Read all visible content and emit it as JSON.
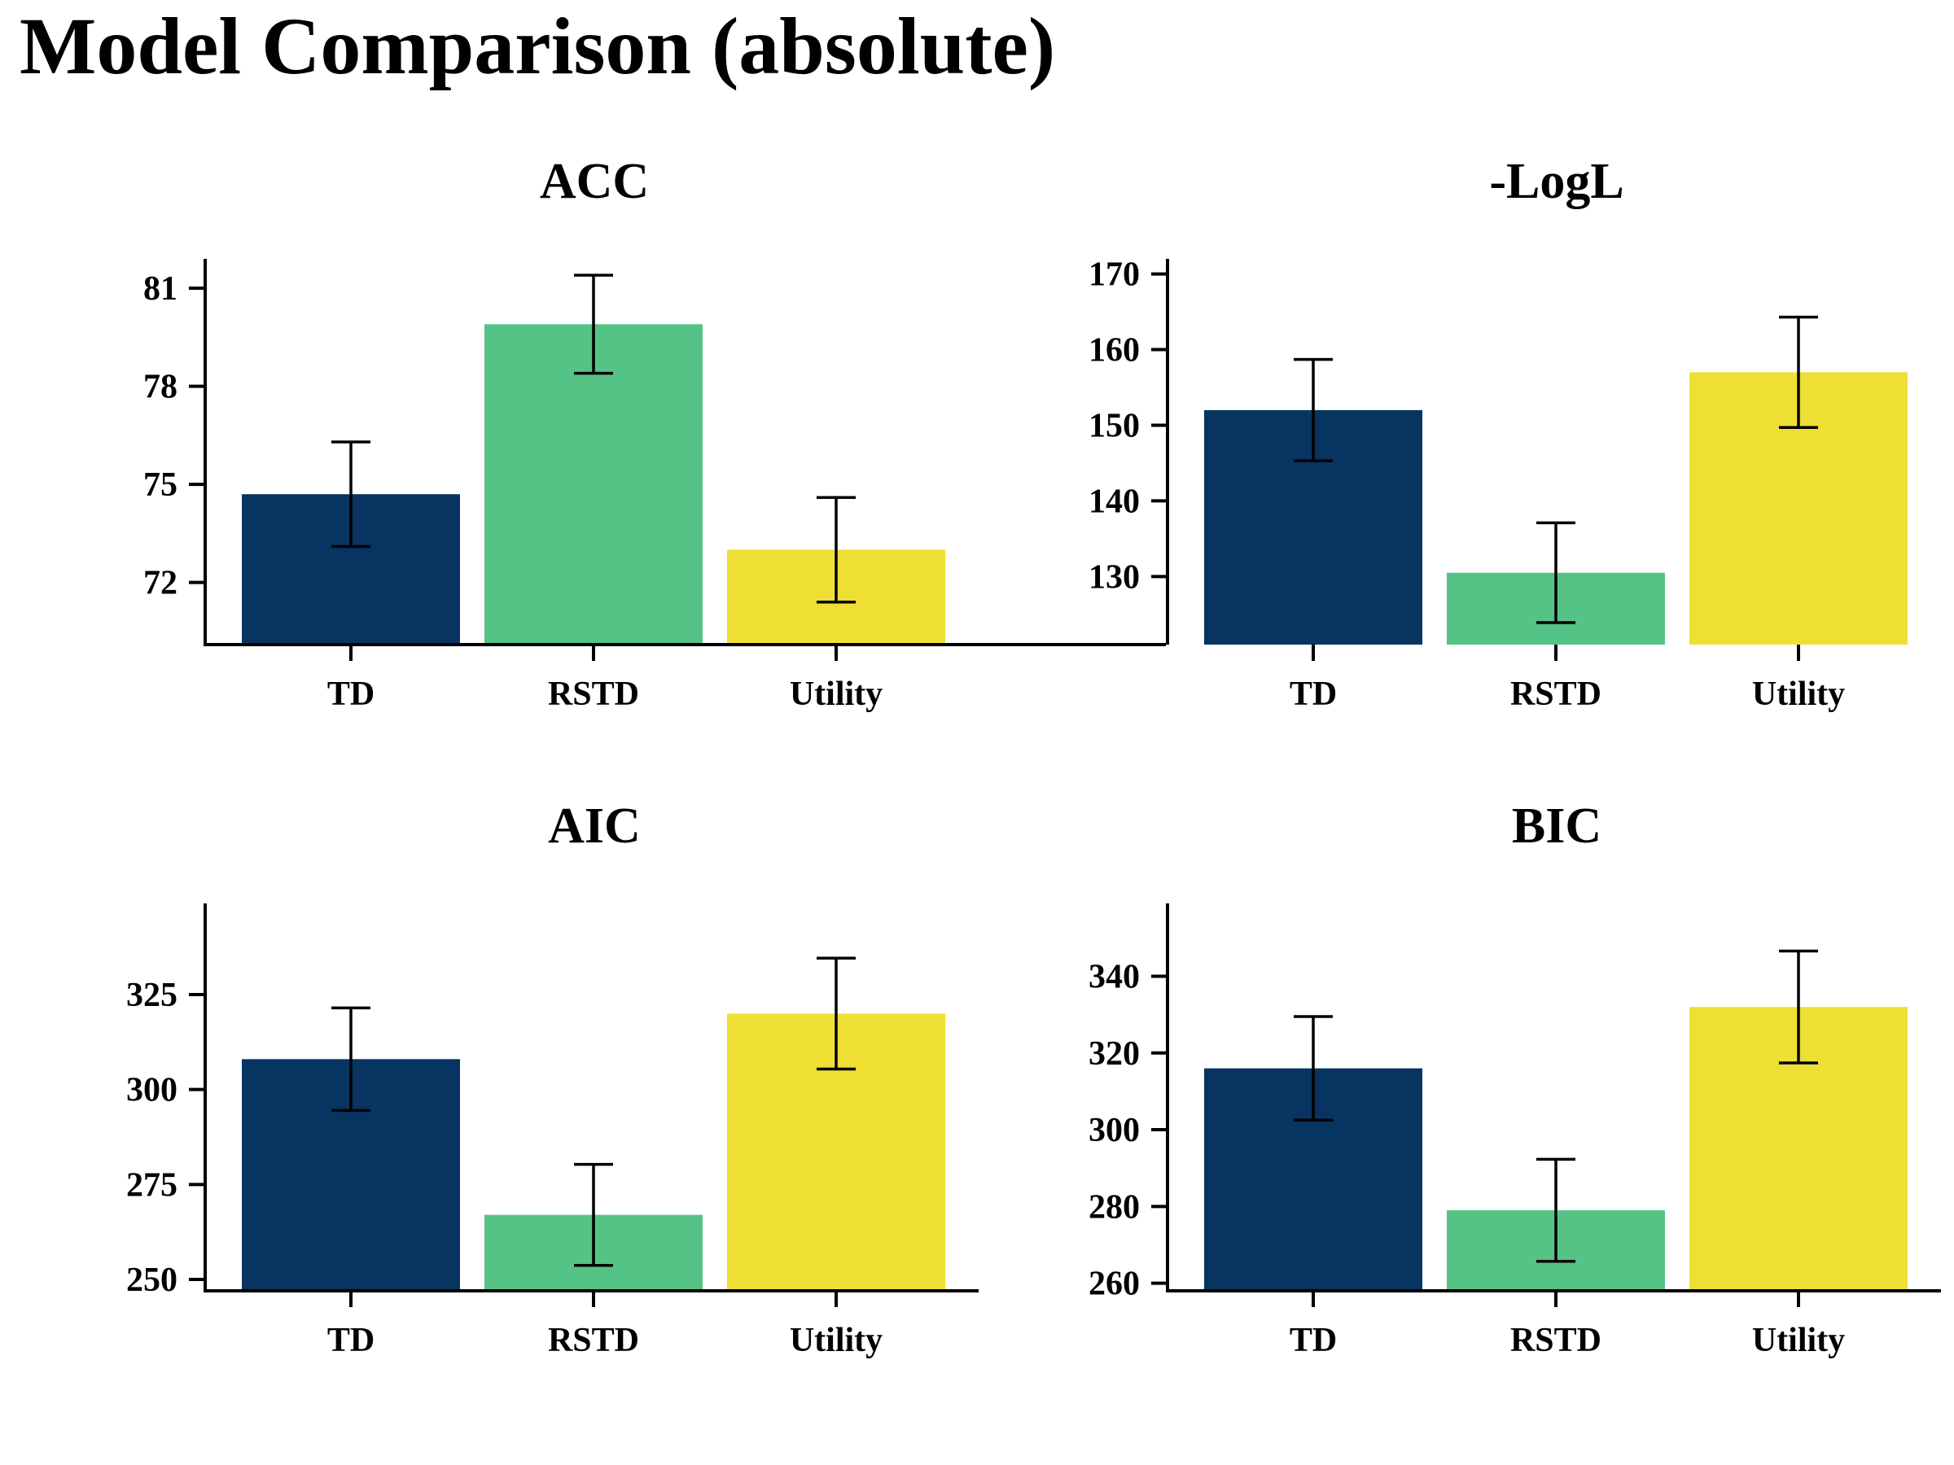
{
  "title": "Model Comparison (absolute)",
  "colors": {
    "TD": "#073461",
    "RSTD": "#56c386",
    "Utility": "#efdf34"
  },
  "chart_data": [
    {
      "type": "bar",
      "title": "ACC",
      "categories": [
        "TD",
        "RSTD",
        "Utility"
      ],
      "values": [
        74.7,
        79.9,
        73.0
      ],
      "errors": [
        1.6,
        1.5,
        1.6
      ],
      "ylim": [
        70.1,
        81.9
      ],
      "yticks": [
        72,
        75,
        78,
        81
      ],
      "xlabel": "",
      "ylabel": ""
    },
    {
      "type": "bar",
      "title": "-LogL",
      "categories": [
        "TD",
        "RSTD",
        "Utility"
      ],
      "values": [
        152,
        130.5,
        157
      ],
      "errors": [
        6.7,
        6.6,
        7.3
      ],
      "ylim": [
        121,
        172
      ],
      "yticks": [
        130,
        140,
        150,
        160,
        170
      ],
      "xlabel": "",
      "ylabel": ""
    },
    {
      "type": "bar",
      "title": "AIC",
      "categories": [
        "TD",
        "RSTD",
        "Utility"
      ],
      "values": [
        308,
        267,
        320
      ],
      "errors": [
        13.5,
        13.3,
        14.6
      ],
      "ylim": [
        247,
        349
      ],
      "yticks": [
        250,
        275,
        300,
        325
      ],
      "xlabel": "",
      "ylabel": ""
    },
    {
      "type": "bar",
      "title": "BIC",
      "categories": [
        "TD",
        "RSTD",
        "Utility"
      ],
      "values": [
        316,
        279,
        332
      ],
      "errors": [
        13.5,
        13.3,
        14.6
      ],
      "ylim": [
        258,
        359
      ],
      "yticks": [
        260,
        280,
        300,
        320,
        340
      ],
      "xlabel": "",
      "ylabel": ""
    }
  ]
}
